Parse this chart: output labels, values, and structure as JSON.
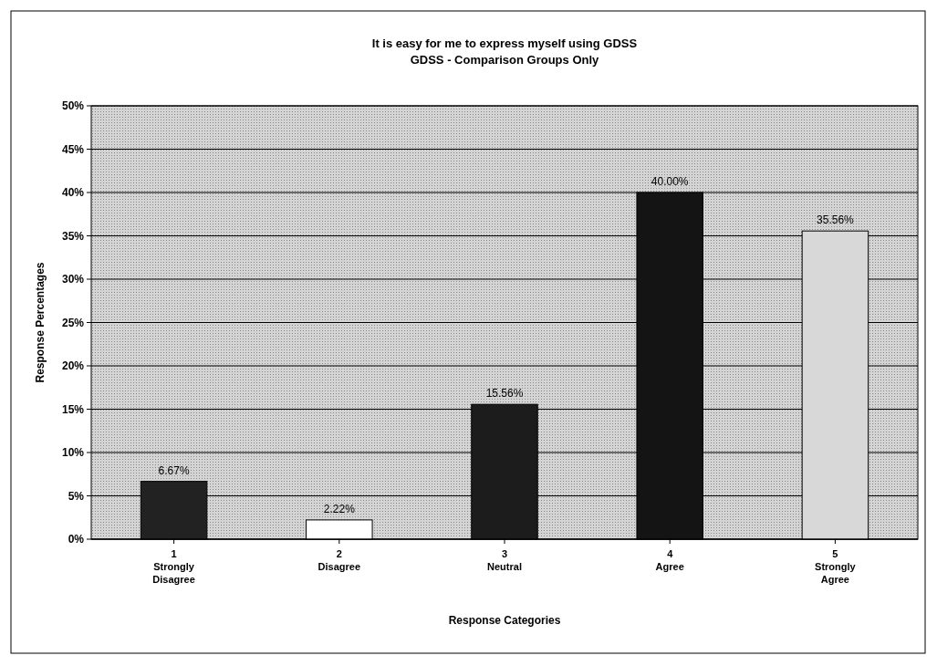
{
  "chart_data": {
    "type": "bar",
    "title": "It is easy for me to express myself using GDSS",
    "subtitle": "GDSS - Comparison Groups Only",
    "xlabel": "Response Categories",
    "ylabel": "Response Percentages",
    "categories": [
      "1\nStrongly\nDisagree",
      "2\nDisagree",
      "3\nNeutral",
      "4\nAgree",
      "5\nStrongly\nAgree"
    ],
    "values": [
      6.67,
      2.22,
      15.56,
      40.0,
      35.56
    ],
    "colors": [
      "#222222",
      "#ffffff",
      "#1c1c1c",
      "#141414",
      "#d8d8d8"
    ],
    "value_labels": [
      "6.67%",
      "2.22%",
      "15.56%",
      "40.00%",
      "35.56%"
    ],
    "ylim": [
      0,
      50
    ],
    "yticks": [
      {
        "value": 0,
        "label": "0%"
      },
      {
        "value": 5,
        "label": "5%"
      },
      {
        "value": 10,
        "label": "10%"
      },
      {
        "value": 15,
        "label": "15%"
      },
      {
        "value": 20,
        "label": "20%"
      },
      {
        "value": 25,
        "label": "25%"
      },
      {
        "value": 30,
        "label": "30%"
      },
      {
        "value": 35,
        "label": "35%"
      },
      {
        "value": 40,
        "label": "40%"
      },
      {
        "value": 45,
        "label": "45%"
      },
      {
        "value": 50,
        "label": "50%"
      }
    ],
    "grid": "y"
  }
}
